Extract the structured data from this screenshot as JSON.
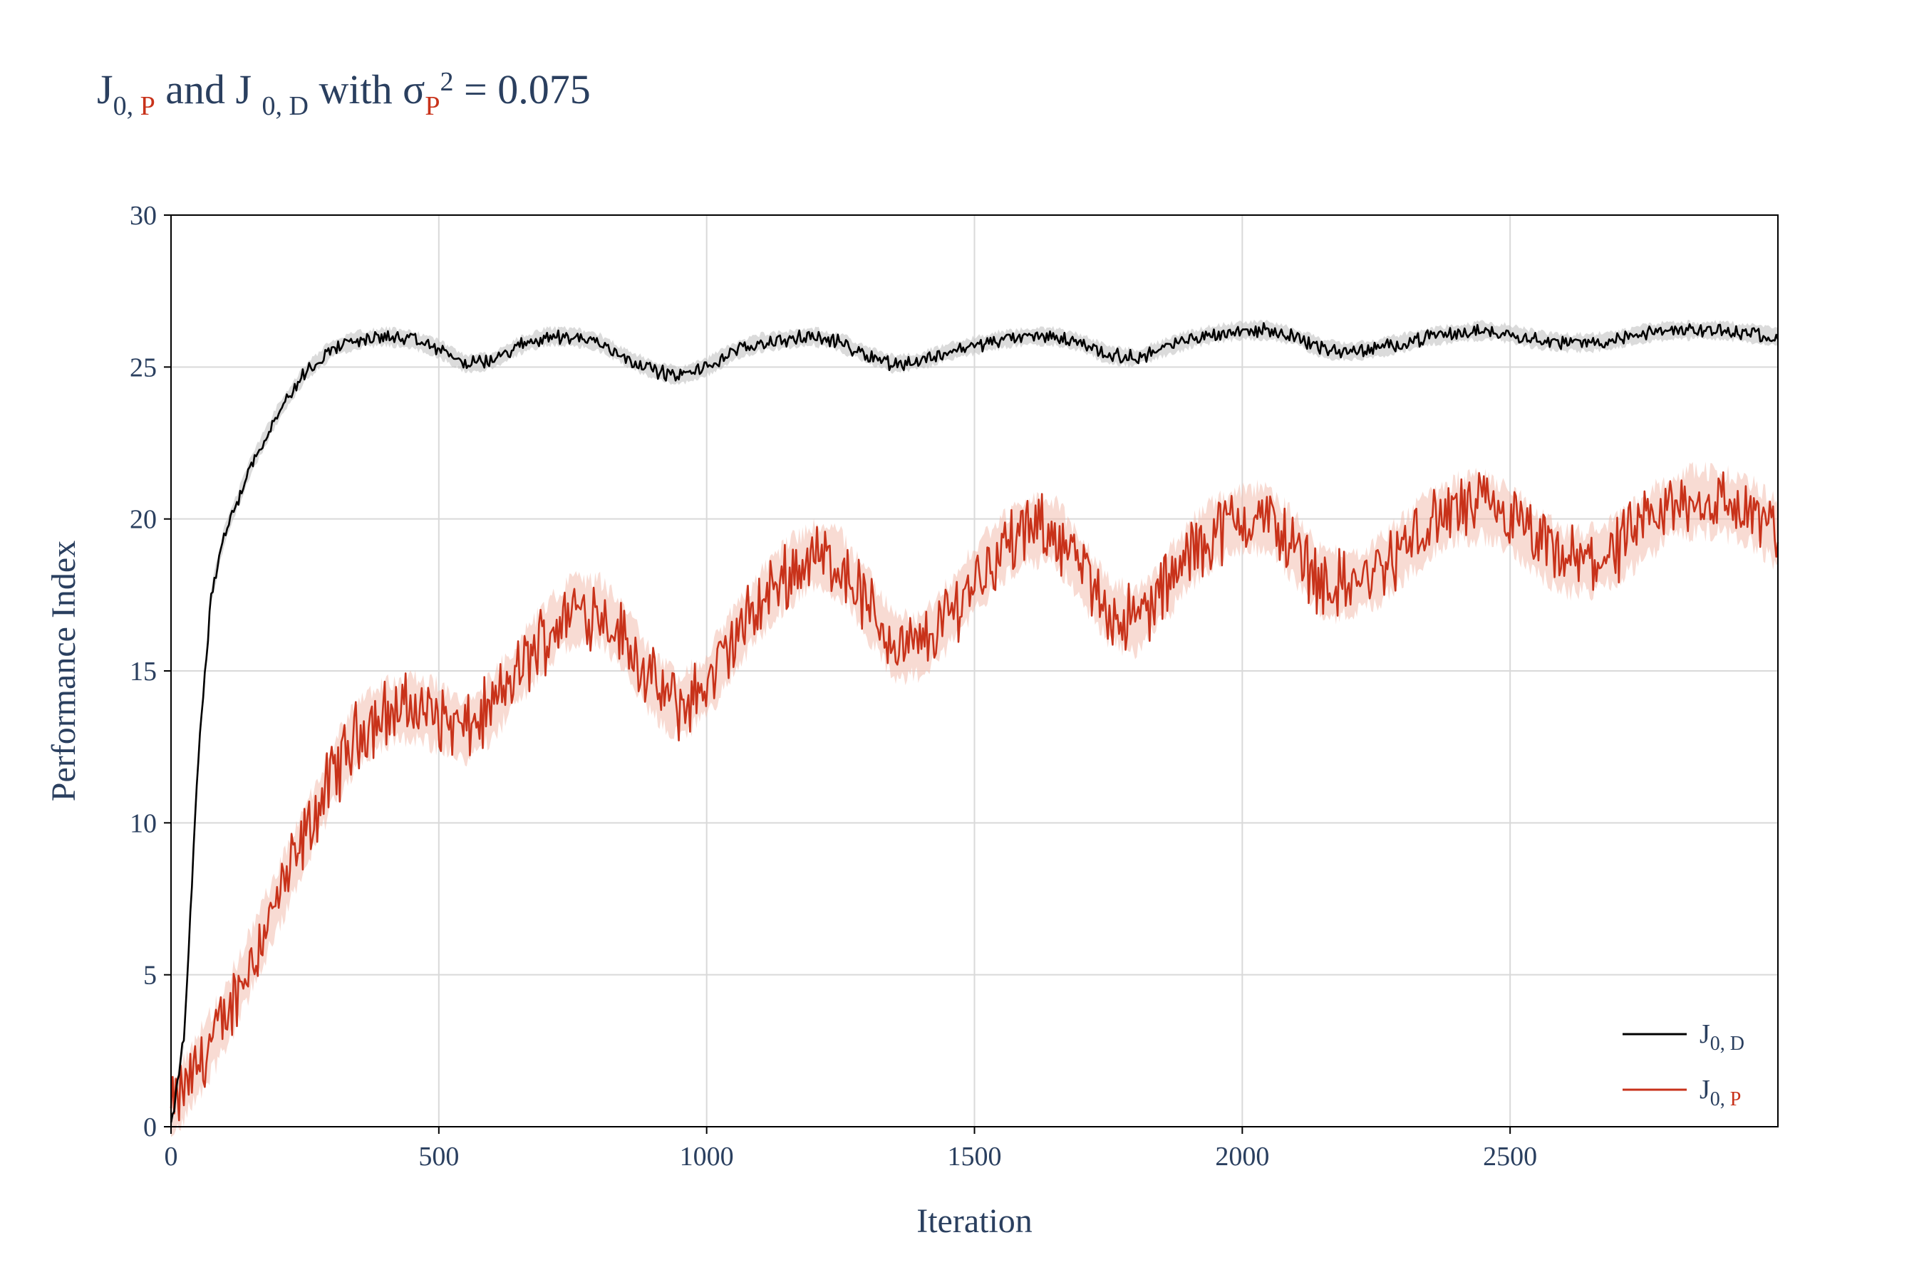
{
  "title": {
    "main_1": "J",
    "sub_1": "0,",
    "sub_1_red": "P",
    "main_2": " and J ",
    "sub_2": "0, D",
    "main_3": "  with σ",
    "sub_3_red": "P",
    "sup_3": "2",
    "main_4": " = 0.075"
  },
  "colors": {
    "text": "#2a3f5f",
    "grid": "#d9d9d9",
    "series_d": "#000000",
    "series_p": "#c8321a",
    "band_d": "#bdbdbd",
    "band_p": "#f2b7a8"
  },
  "chart_data": {
    "type": "line",
    "xlabel": "Iteration",
    "ylabel": "Performance Index",
    "xlim": [
      0,
      3000
    ],
    "ylim": [
      0,
      30
    ],
    "xticks": [
      0,
      500,
      1000,
      1500,
      2000,
      2500
    ],
    "yticks": [
      0,
      5,
      10,
      15,
      20,
      25,
      30
    ],
    "grid": true,
    "legend_position": "bottom-right",
    "legend": [
      {
        "main": "J",
        "sub": "0, D",
        "sub_color": "#2a3f5f"
      },
      {
        "main": "J",
        "sub_prefix": "0, ",
        "sub": "P",
        "sub_color": "#c8321a"
      }
    ],
    "series": [
      {
        "name": "J0, D",
        "x": [
          0,
          25,
          50,
          75,
          100,
          150,
          200,
          250,
          300,
          350,
          400,
          450,
          500,
          550,
          600,
          650,
          700,
          750,
          800,
          850,
          900,
          950,
          1000,
          1050,
          1100,
          1150,
          1200,
          1250,
          1300,
          1350,
          1400,
          1450,
          1500,
          1550,
          1600,
          1650,
          1700,
          1750,
          1800,
          1850,
          1900,
          1950,
          2000,
          2050,
          2100,
          2150,
          2200,
          2250,
          2300,
          2350,
          2400,
          2450,
          2500,
          2550,
          2600,
          2650,
          2700,
          2750,
          2800,
          2850,
          2900,
          2950,
          3000
        ],
        "y": [
          0,
          3,
          12,
          17.5,
          19.5,
          21.8,
          23.5,
          24.8,
          25.6,
          25.9,
          26,
          25.9,
          25.6,
          25.1,
          25.2,
          25.7,
          26,
          26,
          25.8,
          25.3,
          24.9,
          24.7,
          25,
          25.5,
          25.8,
          25.9,
          26,
          25.8,
          25.4,
          25.1,
          25.2,
          25.5,
          25.7,
          25.9,
          26,
          26,
          25.8,
          25.4,
          25.3,
          25.6,
          25.9,
          26.1,
          26.2,
          26.2,
          26,
          25.6,
          25.5,
          25.6,
          25.8,
          26,
          26.1,
          26.2,
          26.1,
          25.9,
          25.8,
          25.8,
          25.9,
          26.1,
          26.2,
          26.2,
          26.2,
          26.1,
          26
        ],
        "band": 0.3
      },
      {
        "name": "J0, P",
        "x": [
          0,
          50,
          100,
          150,
          200,
          250,
          300,
          350,
          400,
          450,
          500,
          550,
          600,
          650,
          700,
          750,
          800,
          850,
          900,
          950,
          1000,
          1050,
          1100,
          1150,
          1200,
          1250,
          1300,
          1350,
          1400,
          1450,
          1500,
          1550,
          1600,
          1650,
          1700,
          1750,
          1800,
          1850,
          1900,
          1950,
          2000,
          2050,
          2100,
          2150,
          2200,
          2250,
          2300,
          2350,
          2400,
          2450,
          2500,
          2550,
          2600,
          2650,
          2700,
          2750,
          2800,
          2850,
          2900,
          2950,
          3000
        ],
        "y": [
          0.5,
          2,
          3.5,
          5.5,
          7.5,
          9.5,
          11.5,
          13,
          13.6,
          13.8,
          13.5,
          13,
          13.8,
          15,
          16.2,
          17,
          17,
          16,
          14.5,
          13.8,
          14.5,
          16,
          17.2,
          18.2,
          18.8,
          18.5,
          17.2,
          15.8,
          15.8,
          16.8,
          18,
          19,
          19.6,
          19.6,
          18.3,
          17,
          16.6,
          17.6,
          18.8,
          19.6,
          20,
          20,
          19,
          17.9,
          17.8,
          18.2,
          19,
          19.8,
          20.3,
          20.4,
          20,
          19.2,
          18.6,
          18.6,
          19,
          19.7,
          20.4,
          20.6,
          20.5,
          20.2,
          19.5
        ],
        "band": 1.1
      }
    ]
  }
}
